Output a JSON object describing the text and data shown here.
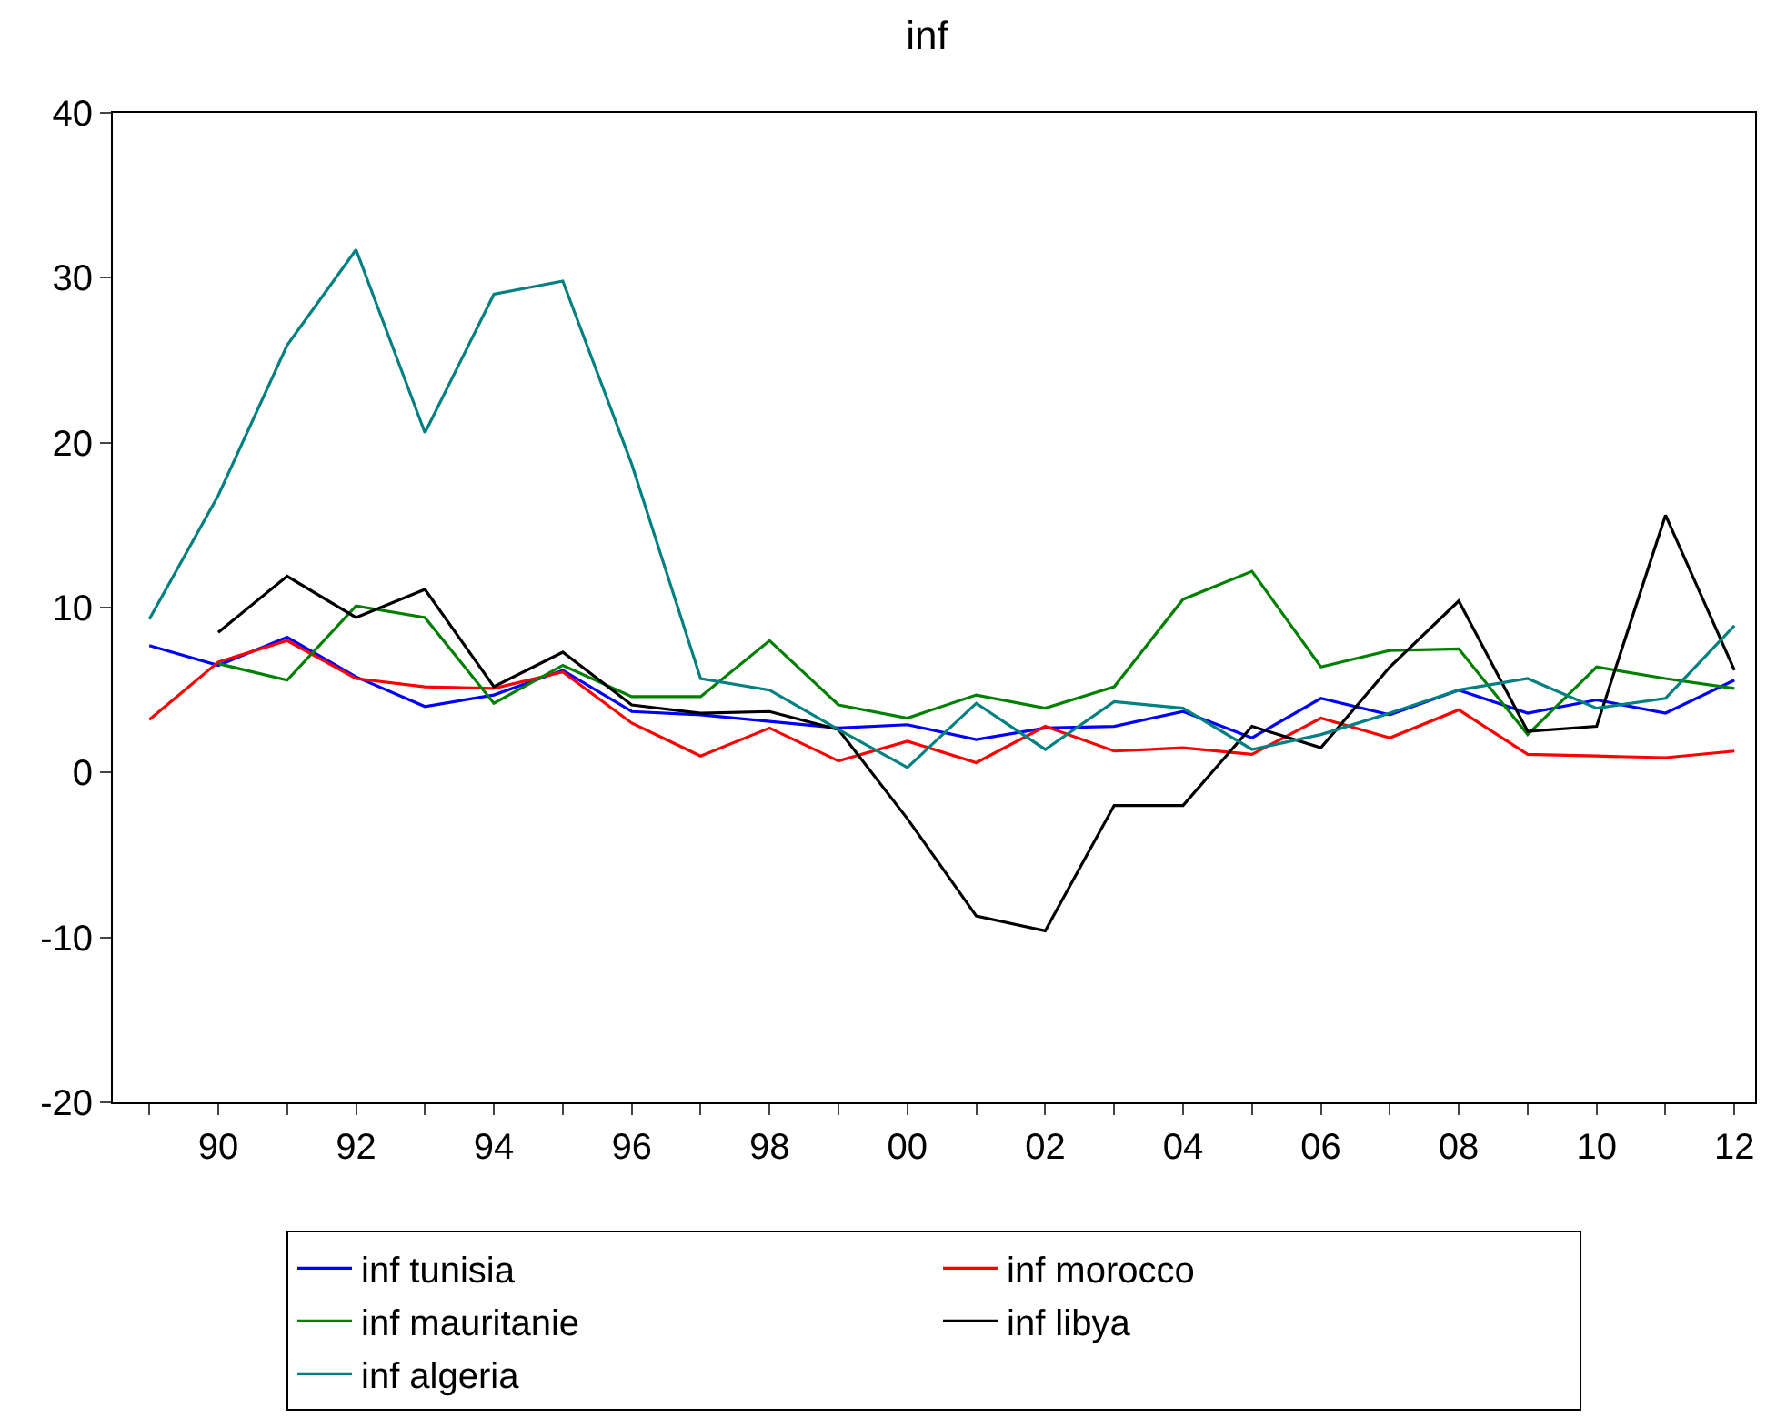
{
  "chart_data": {
    "type": "line",
    "title": "inf",
    "x": [
      1989,
      1990,
      1991,
      1992,
      1993,
      1994,
      1995,
      1996,
      1997,
      1998,
      1999,
      2000,
      2001,
      2002,
      2003,
      2004,
      2005,
      2006,
      2007,
      2008,
      2009,
      2010,
      2011,
      2012
    ],
    "series": [
      {
        "name": "inf tunisia",
        "color": "#0000ff",
        "values": [
          7.7,
          6.5,
          8.2,
          5.8,
          4.0,
          4.7,
          6.2,
          3.7,
          3.5,
          3.1,
          2.7,
          2.9,
          2.0,
          2.7,
          2.8,
          3.7,
          2.1,
          4.5,
          3.5,
          5.0,
          3.6,
          4.4,
          3.6,
          5.6
        ]
      },
      {
        "name": "inf morocco",
        "color": "#ff0000",
        "values": [
          3.2,
          6.7,
          8.0,
          5.7,
          5.2,
          5.1,
          6.1,
          3.0,
          1.0,
          2.7,
          0.7,
          1.9,
          0.6,
          2.8,
          1.3,
          1.5,
          1.1,
          3.3,
          2.1,
          3.8,
          1.1,
          1.0,
          0.9,
          1.3
        ]
      },
      {
        "name": "inf mauritanie",
        "color": "#008000",
        "values": [
          null,
          6.6,
          5.6,
          10.1,
          9.4,
          4.2,
          6.5,
          4.6,
          4.6,
          8.0,
          4.1,
          3.3,
          4.7,
          3.9,
          5.2,
          10.5,
          12.2,
          6.4,
          7.4,
          7.5,
          2.3,
          6.4,
          5.7,
          5.1
        ]
      },
      {
        "name": "inf libya",
        "color": "#000000",
        "values": [
          null,
          8.5,
          11.9,
          9.4,
          11.1,
          5.2,
          7.3,
          4.1,
          3.6,
          3.7,
          2.6,
          -2.8,
          -8.7,
          -9.6,
          -2.0,
          -2.0,
          2.8,
          1.5,
          6.4,
          10.4,
          2.5,
          2.8,
          15.6,
          6.2
        ]
      },
      {
        "name": "inf algeria",
        "color": "#008080",
        "values": [
          9.3,
          16.8,
          25.9,
          31.7,
          20.6,
          29.0,
          29.8,
          18.7,
          5.7,
          5.0,
          2.6,
          0.3,
          4.2,
          1.4,
          4.3,
          3.9,
          1.4,
          2.3,
          3.6,
          5.0,
          5.7,
          3.9,
          4.5,
          8.9
        ]
      }
    ],
    "xlim": [
      1988.47,
      2012.3
    ],
    "xticks": [
      {
        "value": 1989,
        "label": null
      },
      {
        "value": 1990,
        "label": "90"
      },
      {
        "value": 1991,
        "label": null
      },
      {
        "value": 1992,
        "label": "92"
      },
      {
        "value": 1993,
        "label": null
      },
      {
        "value": 1994,
        "label": "94"
      },
      {
        "value": 1995,
        "label": null
      },
      {
        "value": 1996,
        "label": "96"
      },
      {
        "value": 1997,
        "label": null
      },
      {
        "value": 1998,
        "label": "98"
      },
      {
        "value": 1999,
        "label": null
      },
      {
        "value": 2000,
        "label": "00"
      },
      {
        "value": 2001,
        "label": null
      },
      {
        "value": 2002,
        "label": "02"
      },
      {
        "value": 2003,
        "label": null
      },
      {
        "value": 2004,
        "label": "04"
      },
      {
        "value": 2005,
        "label": null
      },
      {
        "value": 2006,
        "label": "06"
      },
      {
        "value": 2007,
        "label": null
      },
      {
        "value": 2008,
        "label": "08"
      },
      {
        "value": 2009,
        "label": null
      },
      {
        "value": 2010,
        "label": "10"
      },
      {
        "value": 2011,
        "label": null
      },
      {
        "value": 2012,
        "label": "12"
      }
    ],
    "ylim": [
      -20,
      40
    ],
    "yticks": [
      -20,
      -10,
      0,
      10,
      20,
      30,
      40
    ],
    "legend": "bottom",
    "marker": "none",
    "line_style": "solid"
  }
}
